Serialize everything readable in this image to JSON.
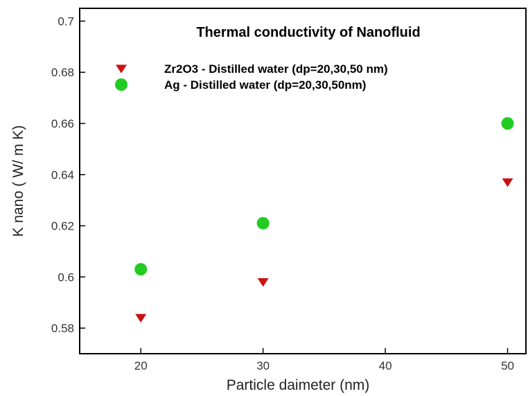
{
  "chart_data": {
    "type": "scatter",
    "title": "Thermal conductivity of Nanofluid",
    "xlabel": "Particle daimeter (nm)",
    "ylabel": "K nano ( W/ m K)",
    "xlim": [
      15,
      51.5
    ],
    "ylim": [
      0.57,
      0.705
    ],
    "xticks": [
      20,
      30,
      40,
      50
    ],
    "yticks": [
      0.58,
      0.6,
      0.62,
      0.64,
      0.66,
      0.68,
      0.7
    ],
    "ytick_labels": [
      "0.58",
      "0.6",
      "0.62",
      "0.64",
      "0.66",
      "0.68",
      "0.7"
    ],
    "grid": false,
    "legend_position": "top-right",
    "series": [
      {
        "name": "Zr2O3  - Distilled water (dp=20,30,50 nm)",
        "marker": "triangle-down",
        "color": "#cc1111",
        "x": [
          20,
          30,
          50
        ],
        "y": [
          0.584,
          0.598,
          0.637
        ]
      },
      {
        "name": "Ag - Distilled water (dp=20,30,50nm)",
        "marker": "circle",
        "color": "#22cc22",
        "x": [
          20,
          30,
          50
        ],
        "y": [
          0.603,
          0.621,
          0.66
        ]
      }
    ]
  }
}
